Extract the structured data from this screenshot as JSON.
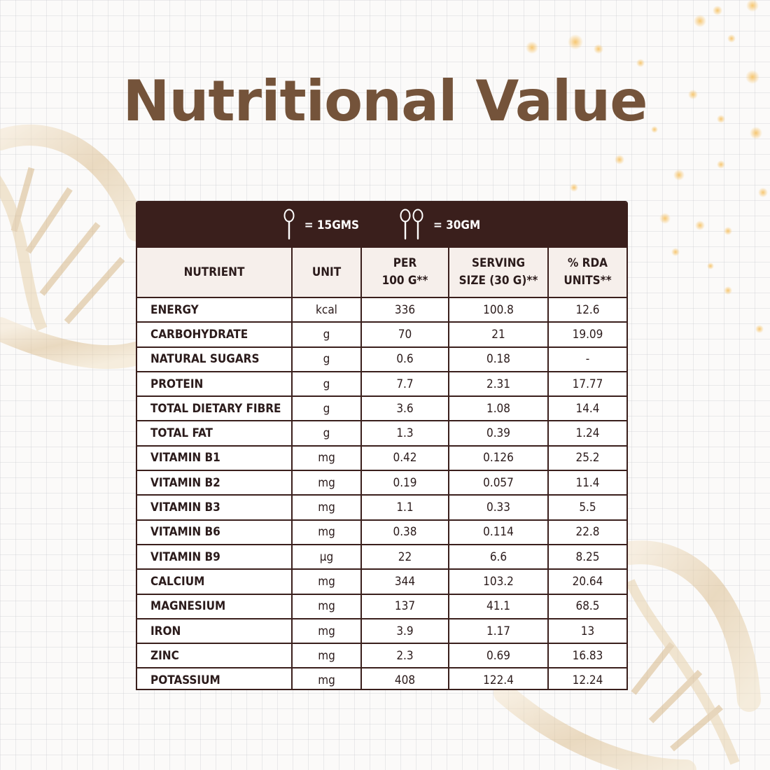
{
  "title": "Nutritional Value",
  "legend": [
    {
      "spoons": 1,
      "text": "= 15GMS"
    },
    {
      "spoons": 2,
      "text": "= 30GM"
    }
  ],
  "headers": [
    "NUTRIENT",
    "UNIT",
    "PER\n100 G**",
    "SERVING\nSIZE (30 G)**",
    "% RDA\nUNITS**"
  ],
  "rows": [
    [
      "ENERGY",
      "kcal",
      "336",
      "100.8",
      "12.6"
    ],
    [
      "CARBOHYDRATE",
      "g",
      "70",
      "21",
      "19.09"
    ],
    [
      "NATURAL SUGARS",
      "g",
      "0.6",
      "0.18",
      "-"
    ],
    [
      "PROTEIN",
      "g",
      "7.7",
      "2.31",
      "17.77"
    ],
    [
      "TOTAL DIETARY FIBRE",
      "g",
      "3.6",
      "1.08",
      "14.4"
    ],
    [
      "TOTAL FAT",
      "g",
      "1.3",
      "0.39",
      "1.24"
    ],
    [
      "VITAMIN B1",
      "mg",
      "0.42",
      "0.126",
      "25.2"
    ],
    [
      "VITAMIN B2",
      "mg",
      "0.19",
      "0.057",
      "11.4"
    ],
    [
      "VITAMIN B3",
      "mg",
      "1.1",
      "0.33",
      "5.5"
    ],
    [
      "VITAMIN B6",
      "mg",
      "0.38",
      "0.114",
      "22.8"
    ],
    [
      "VITAMIN B9",
      "µg",
      "22",
      "6.6",
      "8.25"
    ],
    [
      "CALCIUM",
      "mg",
      "344",
      "103.2",
      "20.64"
    ],
    [
      "MAGNESIUM",
      "mg",
      "137",
      "41.1",
      "68.5"
    ],
    [
      "IRON",
      "mg",
      "3.9",
      "1.17",
      "13"
    ],
    [
      "ZINC",
      "mg",
      "2.3",
      "0.69",
      "16.83"
    ],
    [
      "POTASSIUM",
      "mg",
      "408",
      "122.4",
      "12.24"
    ]
  ],
  "colors": {
    "title": "#74533a",
    "header_bar": "#3a1f1c",
    "header_row": "#f6efeb",
    "border": "#3a1f1c",
    "gold": "#d8b27a"
  },
  "decorations": [
    "dna-helix-left",
    "dna-helix-bottom-right",
    "gold-sparkles"
  ]
}
